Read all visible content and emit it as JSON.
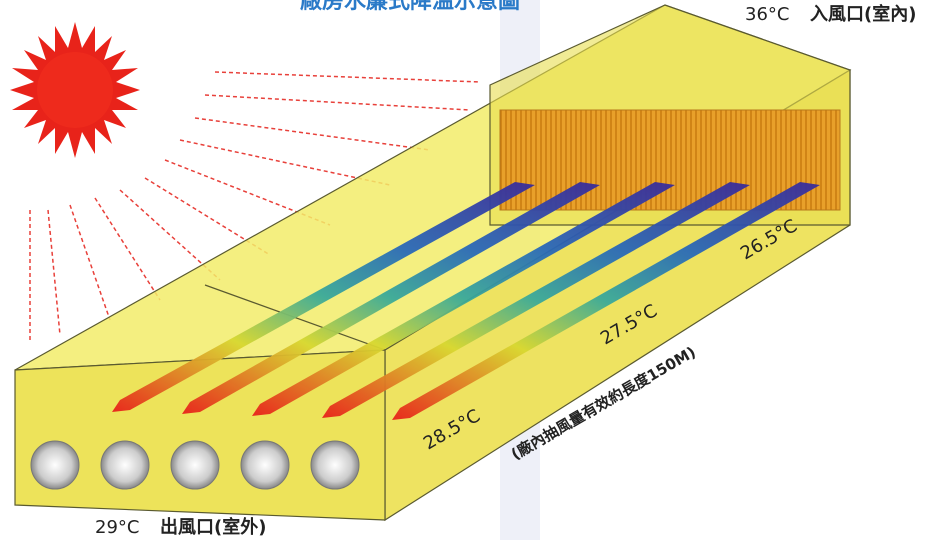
{
  "title": "廠房水簾式降溫示意圖",
  "inlet": {
    "temperature": "36°C",
    "label": "入風口(室內)"
  },
  "outlet": {
    "temperature": "29°C",
    "label": "出風口(室外)"
  },
  "temperatures": [
    "26.5°C",
    "27.5°C",
    "28.5°C"
  ],
  "note": "(廠內抽風量有效約長度150M)"
}
